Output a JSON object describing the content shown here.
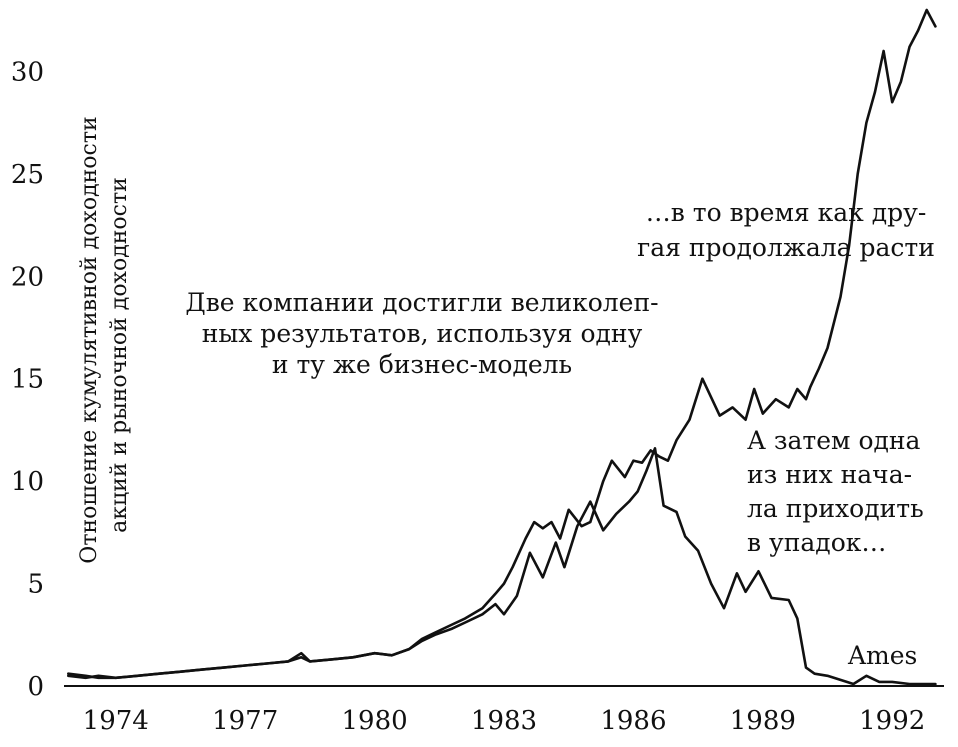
{
  "chart_data": {
    "type": "line",
    "ylabel": [
      "Отношение кумулятивной доходности",
      "акций и рыночной доходности"
    ],
    "xlim": [
      1972.8,
      1993.2
    ],
    "ylim": [
      0,
      33
    ],
    "x_ticks": [
      1974,
      1977,
      1980,
      1983,
      1986,
      1989,
      1992
    ],
    "x_tick_labels": [
      "1974",
      "1977",
      "1980",
      "1983",
      "1986",
      "1989",
      "1992"
    ],
    "y_ticks": [
      0,
      5,
      10,
      15,
      20,
      25,
      30
    ],
    "y_tick_labels": [
      "0",
      "5",
      "10",
      "15",
      "20",
      "25",
      "30"
    ],
    "annotations": {
      "middle": [
        "Две компании достигли великолеп-",
        "ных результатов, используя одну",
        "и ту же бизнес-модель"
      ],
      "top_right": [
        "…в то время как дру-",
        "гая продолжала расти"
      ],
      "right": [
        "А затем одна",
        "из них нача-",
        "ла приходить",
        "в упадок…"
      ],
      "series_label": "Ames"
    },
    "series": [
      {
        "name": "",
        "x": [
          1972.9,
          1973.3,
          1973.6,
          1974.0,
          1974.5,
          1975.0,
          1975.5,
          1976.0,
          1976.5,
          1977.0,
          1977.5,
          1978.0,
          1978.3,
          1978.5,
          1979.0,
          1979.5,
          1980.0,
          1980.4,
          1980.8,
          1981.1,
          1981.4,
          1981.8,
          1982.1,
          1982.5,
          1982.8,
          1983.0,
          1983.2,
          1983.5,
          1983.7,
          1983.9,
          1984.1,
          1984.3,
          1984.5,
          1984.8,
          1985.0,
          1985.3,
          1985.5,
          1985.8,
          1986.0,
          1986.2,
          1986.4,
          1986.6,
          1986.8,
          1987.0,
          1987.3,
          1987.6,
          1988.0,
          1988.3,
          1988.6,
          1988.8,
          1989.0,
          1989.3,
          1989.6,
          1989.8,
          1990.0,
          1990.1,
          1990.3,
          1990.5,
          1990.8,
          1991.0,
          1991.2,
          1991.4,
          1991.6,
          1991.8,
          1992.0,
          1992.2,
          1992.4,
          1992.6,
          1992.8,
          1993.0
        ],
        "y": [
          0.5,
          0.4,
          0.5,
          0.4,
          0.5,
          0.6,
          0.7,
          0.8,
          0.9,
          1.0,
          1.1,
          1.2,
          1.4,
          1.2,
          1.3,
          1.4,
          1.6,
          1.5,
          1.8,
          2.3,
          2.6,
          3.0,
          3.3,
          3.8,
          4.5,
          5.0,
          5.8,
          7.2,
          8.0,
          7.7,
          8.0,
          7.2,
          8.6,
          7.8,
          8.0,
          10.0,
          11.0,
          10.2,
          11.0,
          10.9,
          11.5,
          11.2,
          11.0,
          12.0,
          13.0,
          15.0,
          13.2,
          13.6,
          13.0,
          14.5,
          13.3,
          14.0,
          13.6,
          14.5,
          14.0,
          14.6,
          15.5,
          16.5,
          19.0,
          21.5,
          25.0,
          27.5,
          29.0,
          31.0,
          28.5,
          29.5,
          31.2,
          32.0,
          33.0,
          32.2
        ]
      },
      {
        "name": "Ames",
        "x": [
          1972.9,
          1973.3,
          1973.6,
          1974.0,
          1974.5,
          1975.0,
          1975.5,
          1976.0,
          1976.5,
          1977.0,
          1977.5,
          1978.0,
          1978.3,
          1978.5,
          1979.0,
          1979.5,
          1980.0,
          1980.4,
          1980.8,
          1981.1,
          1981.4,
          1981.8,
          1982.1,
          1982.5,
          1982.8,
          1983.0,
          1983.3,
          1983.6,
          1983.9,
          1984.2,
          1984.4,
          1984.7,
          1985.0,
          1985.3,
          1985.6,
          1985.9,
          1986.1,
          1986.3,
          1986.5,
          1986.7,
          1987.0,
          1987.2,
          1987.5,
          1987.8,
          1988.1,
          1988.4,
          1988.6,
          1988.9,
          1989.2,
          1989.6,
          1989.8,
          1990.0,
          1990.2,
          1990.5,
          1990.8,
          1991.1,
          1991.4,
          1991.7,
          1992.0,
          1992.4,
          1992.8,
          1993.0
        ],
        "y": [
          0.6,
          0.5,
          0.4,
          0.4,
          0.5,
          0.6,
          0.7,
          0.8,
          0.9,
          1.0,
          1.1,
          1.2,
          1.6,
          1.2,
          1.3,
          1.4,
          1.6,
          1.5,
          1.8,
          2.2,
          2.5,
          2.8,
          3.1,
          3.5,
          4.0,
          3.5,
          4.4,
          6.5,
          5.3,
          7.0,
          5.8,
          7.8,
          9.0,
          7.6,
          8.4,
          9.0,
          9.5,
          10.5,
          11.6,
          8.8,
          8.5,
          7.3,
          6.6,
          5.0,
          3.8,
          5.5,
          4.6,
          5.6,
          4.3,
          4.2,
          3.3,
          0.9,
          0.6,
          0.5,
          0.3,
          0.1,
          0.5,
          0.2,
          0.2,
          0.1,
          0.1,
          0.1
        ]
      }
    ]
  }
}
